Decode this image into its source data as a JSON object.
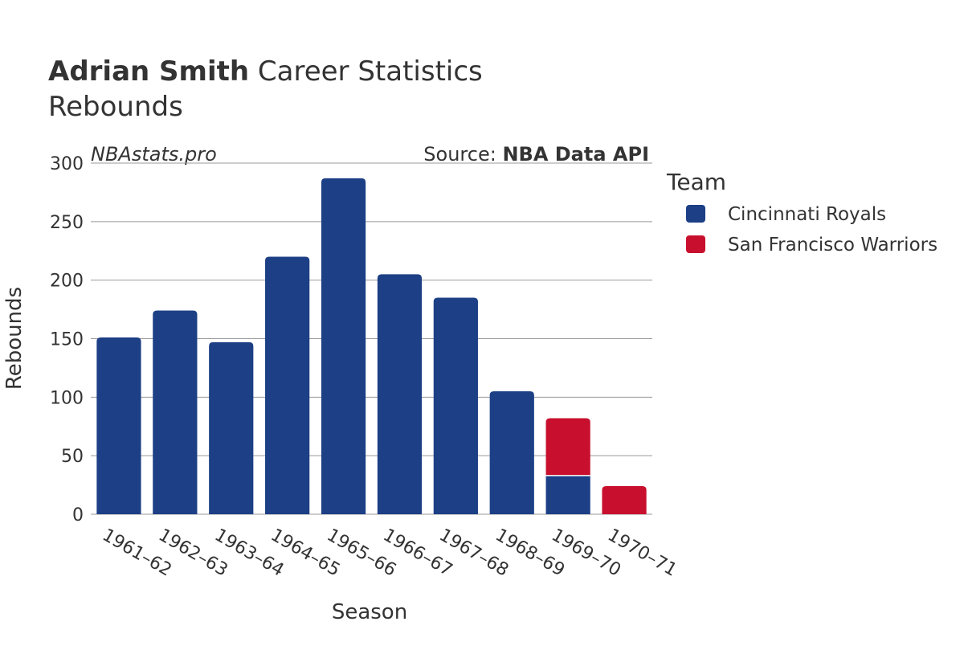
{
  "title": {
    "player": "Adrian Smith",
    "rest": " Career Statistics",
    "subtitle": "Rebounds"
  },
  "watermark": "NBAstats.pro",
  "source": {
    "prefix": "Source: ",
    "name": "NBA Data API"
  },
  "legend_title": "Team",
  "colors": {
    "Cincinnati Royals": "#1c3f85",
    "San Francisco Warriors": "#c8102e"
  },
  "chart_data": {
    "type": "bar",
    "stacked": true,
    "xlabel": "Season",
    "ylabel": "Rebounds",
    "ylim": [
      0,
      300
    ],
    "yticks": [
      0,
      50,
      100,
      150,
      200,
      250,
      300
    ],
    "grid": true,
    "legend_position": "right",
    "categories": [
      "1961–62",
      "1962–63",
      "1963–64",
      "1964–65",
      "1965–66",
      "1966–67",
      "1967–68",
      "1968–69",
      "1969–70",
      "1970–71"
    ],
    "series": [
      {
        "name": "Cincinnati Royals",
        "values": [
          151,
          174,
          147,
          220,
          287,
          205,
          185,
          105,
          33,
          0
        ]
      },
      {
        "name": "San Francisco Warriors",
        "values": [
          0,
          0,
          0,
          0,
          0,
          0,
          0,
          0,
          49,
          24
        ]
      }
    ]
  }
}
